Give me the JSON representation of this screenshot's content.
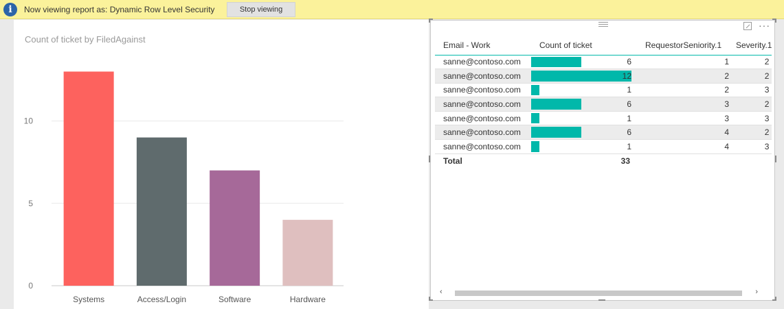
{
  "banner": {
    "info_icon": "info-icon",
    "text": "Now viewing report as: Dynamic Row Level Security",
    "stop_label": "Stop viewing"
  },
  "chart_data": {
    "type": "bar",
    "title": "Count of ticket by FiledAgainst",
    "categories": [
      "Systems",
      "Access/Login",
      "Software",
      "Hardware"
    ],
    "values": [
      13,
      9,
      7,
      4
    ],
    "colors": [
      "#fd625e",
      "#5f6b6d",
      "#a66999",
      "#dfbfbf"
    ],
    "yticks": [
      0,
      5,
      10
    ],
    "ylim": [
      0,
      14.6
    ],
    "grid": true
  },
  "table": {
    "columns": [
      "Email - Work",
      "Count of ticket",
      "RequestorSeniority.1",
      "Severity.1"
    ],
    "rows": [
      {
        "email": "sanne@contoso.com",
        "count": 6,
        "seniority": 1,
        "severity": 2
      },
      {
        "email": "sanne@contoso.com",
        "count": 12,
        "seniority": 2,
        "severity": 2
      },
      {
        "email": "sanne@contoso.com",
        "count": 1,
        "seniority": 2,
        "severity": 3
      },
      {
        "email": "sanne@contoso.com",
        "count": 6,
        "seniority": 3,
        "severity": 2
      },
      {
        "email": "sanne@contoso.com",
        "count": 1,
        "seniority": 3,
        "severity": 3
      },
      {
        "email": "sanne@contoso.com",
        "count": 6,
        "seniority": 4,
        "severity": 2
      },
      {
        "email": "sanne@contoso.com",
        "count": 1,
        "seniority": 4,
        "severity": 3
      }
    ],
    "total_label": "Total",
    "total_count": "33",
    "bar_color": "#01b8aa",
    "bar_max": 12
  },
  "icons": {
    "focus": "focus-mode-icon",
    "more": "more-options-icon",
    "scroll_left": "‹",
    "scroll_right": "›",
    "more_glyph": "···"
  }
}
